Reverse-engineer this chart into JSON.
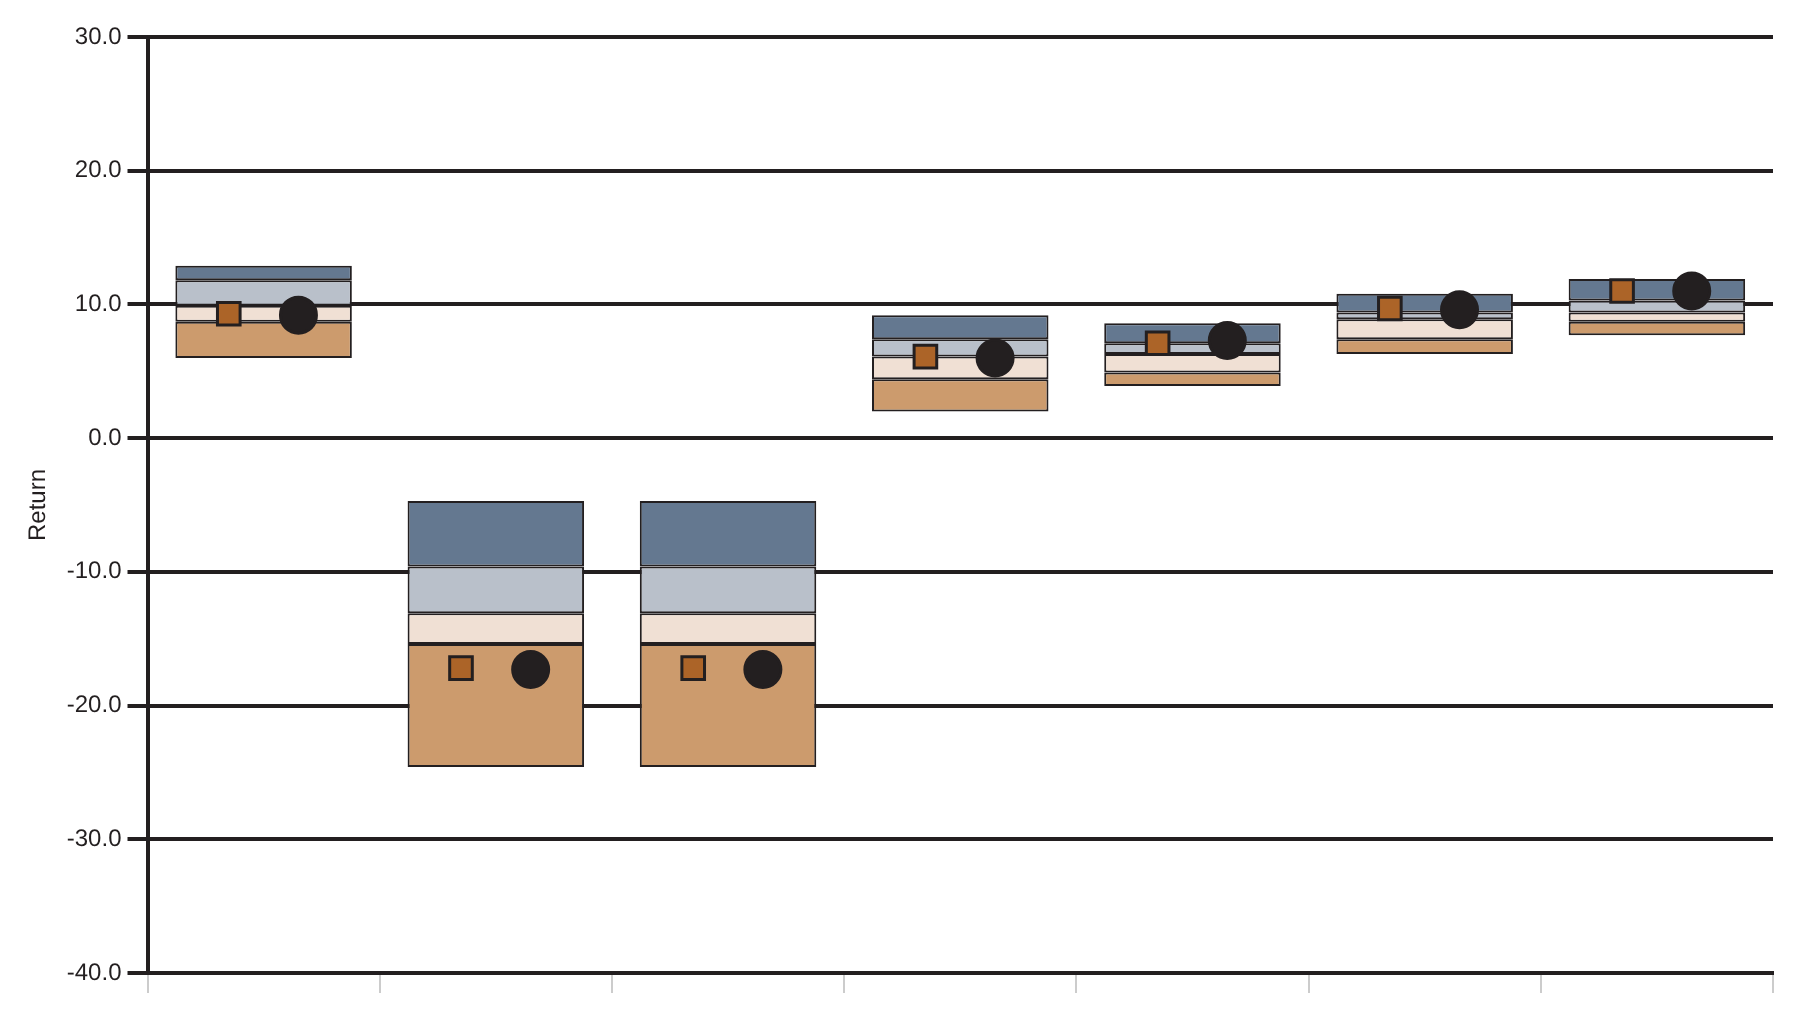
{
  "chart_data": {
    "type": "bar",
    "ylabel": "Return",
    "categories": [
      null,
      null,
      null,
      null,
      null,
      null,
      null
    ],
    "series": [
      {
        "color": "#cc9b6d",
        "base": [
          6.0,
          -24.6,
          -24.6,
          2.0,
          3.9,
          6.3,
          7.7
        ],
        "values": [
          2.7,
          9.2,
          9.2,
          2.4,
          1.0,
          1.1,
          1.0
        ]
      },
      {
        "color": "#f0e0d4",
        "base": [
          8.7,
          -15.4,
          -15.4,
          4.4,
          4.9,
          7.4,
          8.7
        ],
        "values": [
          1.2,
          2.3,
          2.3,
          1.7,
          1.4,
          1.5,
          0.7
        ]
      },
      {
        "color": "#b9c0ca",
        "base": [
          9.9,
          -13.1,
          -13.1,
          6.1,
          6.3,
          8.9,
          9.4
        ],
        "values": [
          1.9,
          3.5,
          3.5,
          1.3,
          0.8,
          0.5,
          0.9
        ]
      },
      {
        "color": "#647890",
        "base": [
          11.8,
          -9.6,
          -9.6,
          7.4,
          7.1,
          9.4,
          10.3
        ],
        "values": [
          1.1,
          4.9,
          4.9,
          1.8,
          1.5,
          1.4,
          1.6
        ]
      },
      {
        "type": "scatter",
        "marker": "square",
        "color": "#ac6428",
        "values": [
          9.3,
          -17.2,
          -17.2,
          6.1,
          7.1,
          9.7,
          11.0
        ]
      },
      {
        "type": "scatter",
        "marker": "circle",
        "color": "#231f20",
        "values": [
          9.2,
          -17.3,
          -17.3,
          6.0,
          7.3,
          9.6,
          11.0
        ]
      }
    ],
    "ylim": [
      -40,
      30
    ],
    "yticks": [
      {
        "value": -40,
        "label": "-40.0"
      },
      {
        "value": -30,
        "label": "-30.0"
      },
      {
        "value": -20,
        "label": "-20.0"
      },
      {
        "value": -10,
        "label": "-10.0"
      },
      {
        "value": 0,
        "label": "0.0"
      },
      {
        "value": 10,
        "label": "10.0"
      },
      {
        "value": 20,
        "label": "20.0"
      },
      {
        "value": 30,
        "label": "30.0"
      }
    ],
    "grid": "y",
    "tick_labels": "y"
  }
}
